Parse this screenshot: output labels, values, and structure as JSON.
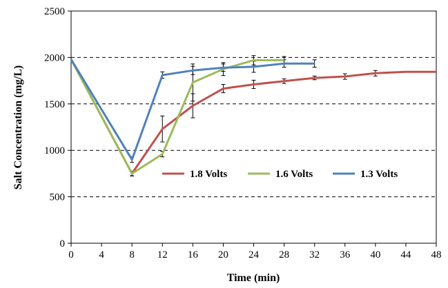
{
  "chart_data": {
    "type": "line",
    "xlabel": "Time (min)",
    "ylabel": "Salt Concentration (mg/L)",
    "xlim": [
      0,
      48
    ],
    "ylim": [
      0,
      2500
    ],
    "x_ticks": [
      0,
      4,
      8,
      12,
      16,
      20,
      24,
      28,
      32,
      36,
      40,
      44,
      48
    ],
    "y_ticks": [
      0,
      500,
      1000,
      1500,
      2000,
      2500
    ],
    "grid": "horizontal dashed",
    "legend_position": "center-right",
    "series": [
      {
        "name": "1.8 Volts",
        "color": "#c0504d",
        "x": [
          0,
          8,
          12,
          16,
          20,
          24,
          28,
          32,
          36,
          40,
          44,
          48
        ],
        "y": [
          1980,
          750,
          1230,
          1480,
          1665,
          1710,
          1745,
          1780,
          1795,
          1830,
          1845,
          1845
        ],
        "err": [
          0,
          25,
          140,
          130,
          45,
          45,
          25,
          20,
          30,
          30,
          0,
          0
        ]
      },
      {
        "name": "1.6 Volts",
        "color": "#9bbb59",
        "x": [
          0,
          8,
          12,
          16,
          20,
          24,
          28
        ],
        "y": [
          1980,
          750,
          960,
          1730,
          1875,
          1970,
          1970
        ],
        "err": [
          0,
          25,
          30,
          200,
          70,
          50,
          40
        ]
      },
      {
        "name": "1.3 Volts",
        "color": "#4f81bd",
        "x": [
          0,
          8,
          12,
          16,
          20,
          24,
          28,
          32
        ],
        "y": [
          1980,
          900,
          1810,
          1860,
          1890,
          1900,
          1935,
          1935
        ],
        "err": [
          0,
          30,
          35,
          45,
          40,
          60,
          40,
          40
        ]
      }
    ]
  }
}
